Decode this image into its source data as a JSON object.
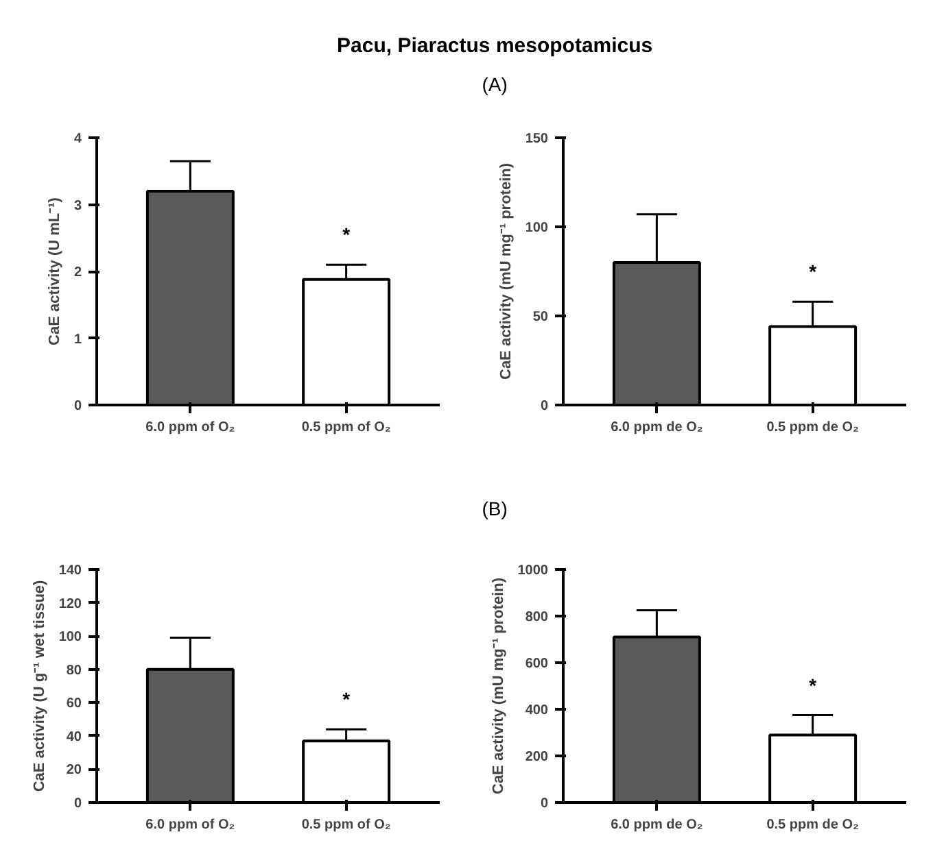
{
  "chart_data": [
    {
      "type": "bar",
      "title": "Pacu, Piaractus mesopotamicus",
      "categories": [
        "6.0 ppm of O₂",
        "0.5 ppm of O₂"
      ],
      "values": [
        3.2,
        1.88
      ],
      "colors": [
        "#5a5a5a",
        "#ffffff"
      ],
      "errors": [
        [
          3.2,
          3.65
        ],
        [
          1.88,
          2.1
        ]
      ],
      "ylabel": "CaE activity (U mL⁻¹)",
      "ylim": [
        0,
        4
      ],
      "yticks": [
        0,
        1,
        2,
        3,
        4
      ],
      "grid": false,
      "annotations": [
        "*"
      ]
    },
    {
      "type": "bar",
      "title": "(A)",
      "categories": [
        "6.0 ppm de O₂",
        "0.5 ppm de O₂"
      ],
      "values": [
        80,
        44
      ],
      "colors": [
        "#5a5a5a",
        "#ffffff"
      ],
      "errors": [
        [
          80,
          107
        ],
        [
          44,
          58
        ]
      ],
      "ylabel": "CaE activity (mU mg⁻¹ protein)",
      "ylim": [
        0,
        150
      ],
      "yticks": [
        0,
        50,
        100,
        150
      ],
      "grid": false,
      "annotations": [
        "*"
      ]
    },
    {
      "type": "bar",
      "categories": [
        "6.0 ppm of O₂",
        "0.5 ppm of O₂"
      ],
      "values": [
        80,
        37
      ],
      "colors": [
        "#5a5a5a",
        "#ffffff"
      ],
      "errors": [
        [
          80,
          99
        ],
        [
          37,
          44
        ]
      ],
      "ylabel": "CaE activity (U g⁻¹ wet tissue)",
      "ylim": [
        0,
        140
      ],
      "yticks": [
        0,
        20,
        40,
        60,
        80,
        100,
        120,
        140
      ],
      "grid": false,
      "annotations": [
        "*"
      ]
    },
    {
      "type": "bar",
      "title": "(B)",
      "categories": [
        "6.0 ppm de O₂",
        "0.5 ppm de O₂"
      ],
      "values": [
        710,
        290
      ],
      "colors": [
        "#5a5a5a",
        "#ffffff"
      ],
      "errors": [
        [
          710,
          825
        ],
        [
          290,
          375
        ]
      ],
      "ylabel": "CaE activity (mU mg⁻¹ protein)",
      "ylim": [
        0,
        1000
      ],
      "yticks": [
        0,
        200,
        400,
        600,
        800,
        1000
      ],
      "grid": false,
      "annotations": [
        "*"
      ]
    }
  ]
}
